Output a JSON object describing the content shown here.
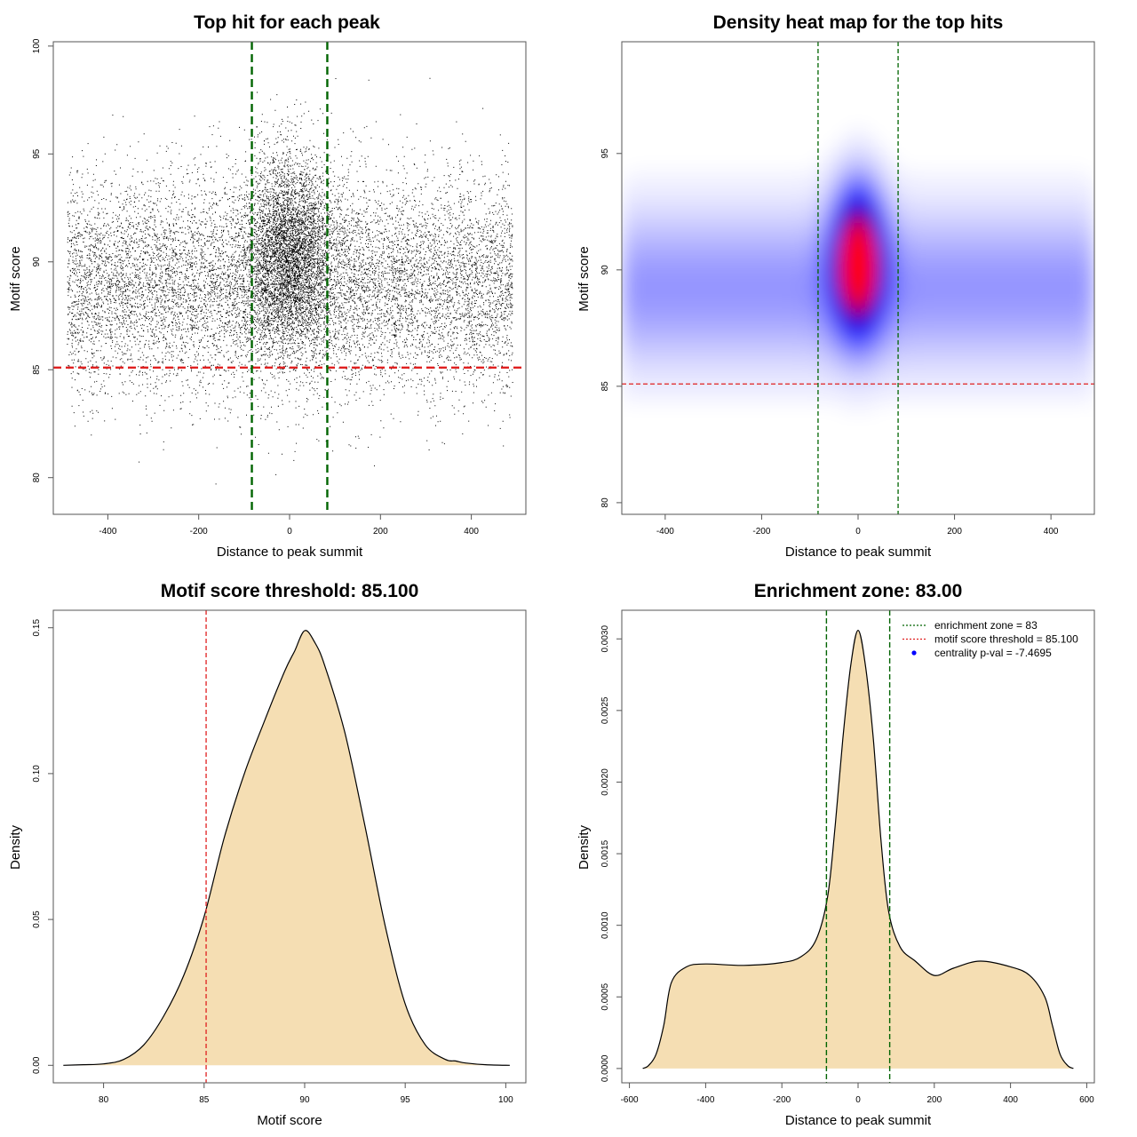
{
  "colors": {
    "threshold": "#e02020",
    "zone": "#006400",
    "fill": "#f5deb3",
    "point": "#000000",
    "heat_low": "#ffffff",
    "heat_mid": "#0000ff",
    "heat_high": "#ff0000",
    "legend_dot": "#0000ff"
  },
  "chart_data": [
    {
      "type": "scatter",
      "title": "Top hit for each peak",
      "xlabel": "Distance to peak summit",
      "ylabel": "Motif score",
      "xlim": [
        -520,
        520
      ],
      "ylim": [
        78.3,
        100.2
      ],
      "xticks": [
        -400,
        -200,
        0,
        200,
        400
      ],
      "yticks": [
        80,
        85,
        90,
        95,
        100
      ],
      "hlines": [
        85.1
      ],
      "vlines": [
        -83,
        83
      ],
      "points_description": "dense cloud of ~15000 top hits, x uniform in [-490,490], y centered at ~89.5, concentrated near x=0"
    },
    {
      "type": "heatmap",
      "title": "Density heat map for the top hits",
      "xlabel": "Distance to peak summit",
      "ylabel": "Motif score",
      "xlim": [
        -490,
        490
      ],
      "ylim": [
        79.5,
        99.8
      ],
      "xticks": [
        -400,
        -200,
        0,
        200,
        400
      ],
      "yticks": [
        80,
        85,
        90,
        95
      ],
      "hlines": [
        85.1
      ],
      "vlines": [
        -83,
        83
      ],
      "peak": {
        "x": 0,
        "y": 90.4
      }
    },
    {
      "type": "area",
      "title": "Motif score threshold: 85.100",
      "xlabel": "Motif score",
      "ylabel": "Density",
      "xlim": [
        77.5,
        101.0
      ],
      "ylim": [
        -0.006,
        0.156
      ],
      "xticks": [
        80,
        85,
        90,
        95,
        100
      ],
      "yticks": [
        0.0,
        0.05,
        0.1,
        0.15
      ],
      "ytick_labels": [
        "0.00",
        "0.05",
        "0.10",
        "0.15"
      ],
      "vlines": [
        85.1
      ],
      "x": [
        78,
        79,
        80,
        81,
        82,
        83,
        84,
        85,
        86,
        87,
        88,
        89,
        89.5,
        90,
        90.5,
        91,
        92,
        93,
        94,
        95,
        96,
        97,
        97.5,
        98,
        99,
        100.2
      ],
      "y": [
        0,
        0.0002,
        0.0005,
        0.002,
        0.007,
        0.017,
        0.031,
        0.051,
        0.078,
        0.1,
        0.118,
        0.135,
        0.142,
        0.149,
        0.145,
        0.137,
        0.114,
        0.082,
        0.048,
        0.021,
        0.007,
        0.002,
        0.0015,
        0.0008,
        0.0002,
        0
      ]
    },
    {
      "type": "area",
      "title": "Enrichment zone: 83.00",
      "xlabel": "Distance to peak summit",
      "ylabel": "Density",
      "xlim": [
        -620,
        620
      ],
      "ylim": [
        -0.0001,
        0.0032
      ],
      "xticks": [
        -600,
        -400,
        -200,
        0,
        200,
        400,
        600
      ],
      "yticks": [
        0,
        0.0005,
        0.001,
        0.0015,
        0.002,
        0.0025,
        0.003
      ],
      "ytick_labels": [
        "0.0000",
        "0.0005",
        "0.0010",
        "0.0015",
        "0.0020",
        "0.0025",
        "0.0030"
      ],
      "vlines": [
        -83,
        83
      ],
      "x": [
        -565,
        -550,
        -530,
        -510,
        -490,
        -450,
        -400,
        -300,
        -200,
        -150,
        -110,
        -80,
        -60,
        -40,
        -20,
        0,
        20,
        40,
        60,
        80,
        110,
        150,
        200,
        250,
        320,
        400,
        450,
        490,
        510,
        530,
        550,
        565
      ],
      "y": [
        0.0,
        2e-05,
        0.0001,
        0.0003,
        0.0006,
        0.00071,
        0.00073,
        0.00072,
        0.00074,
        0.00078,
        0.0009,
        0.0012,
        0.0017,
        0.0023,
        0.0028,
        0.00306,
        0.0028,
        0.0023,
        0.0016,
        0.0011,
        0.00085,
        0.00075,
        0.00065,
        0.0007,
        0.00075,
        0.00071,
        0.00065,
        0.0005,
        0.0003,
        0.0001,
        2e-05,
        0.0
      ],
      "legend": [
        {
          "label": "enrichment zone = 83",
          "style": "dotted",
          "color": "#006400"
        },
        {
          "label": "motif score threshold = 85.100",
          "style": "dotted",
          "color": "#e02020"
        },
        {
          "label": "centrality p-val = -7.4695",
          "style": "dot",
          "color": "#0000ff"
        }
      ],
      "legend_position": "top-right"
    }
  ]
}
